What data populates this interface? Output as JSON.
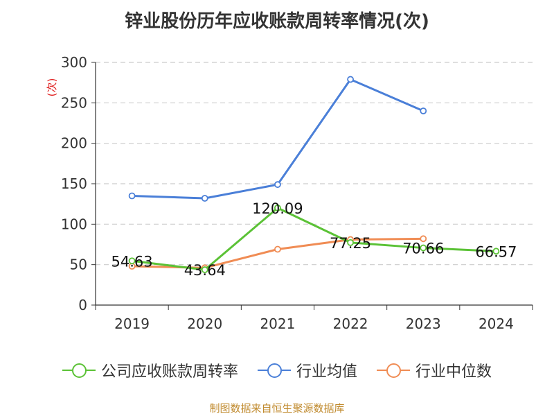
{
  "chart_data": {
    "type": "line",
    "title": "锌业股份历年应收账款周转率情况(次)",
    "ylabel": "(次)",
    "xlabel": "",
    "ylim": [
      0,
      300
    ],
    "yticks": [
      0,
      50,
      100,
      150,
      200,
      250,
      300
    ],
    "grid": true,
    "legend_position": "bottom",
    "categories": [
      "2019",
      "2020",
      "2021",
      "2022",
      "2023",
      "2024"
    ],
    "series": [
      {
        "name": "公司应收账款周转率",
        "color": "#5bc236",
        "values": [
          54.63,
          43.64,
          120.09,
          77.25,
          70.66,
          66.57
        ],
        "labels": [
          "54.63",
          "43.64",
          "120.09",
          "77.25",
          "70.66",
          "66.57"
        ]
      },
      {
        "name": "行业均值",
        "color": "#4a7fd8",
        "values": [
          135,
          132,
          149,
          279,
          240,
          null
        ]
      },
      {
        "name": "行业中位数",
        "color": "#f08c54",
        "values": [
          48,
          46,
          69,
          81,
          82,
          null
        ]
      }
    ],
    "source": "制图数据来自恒生聚源数据库"
  }
}
